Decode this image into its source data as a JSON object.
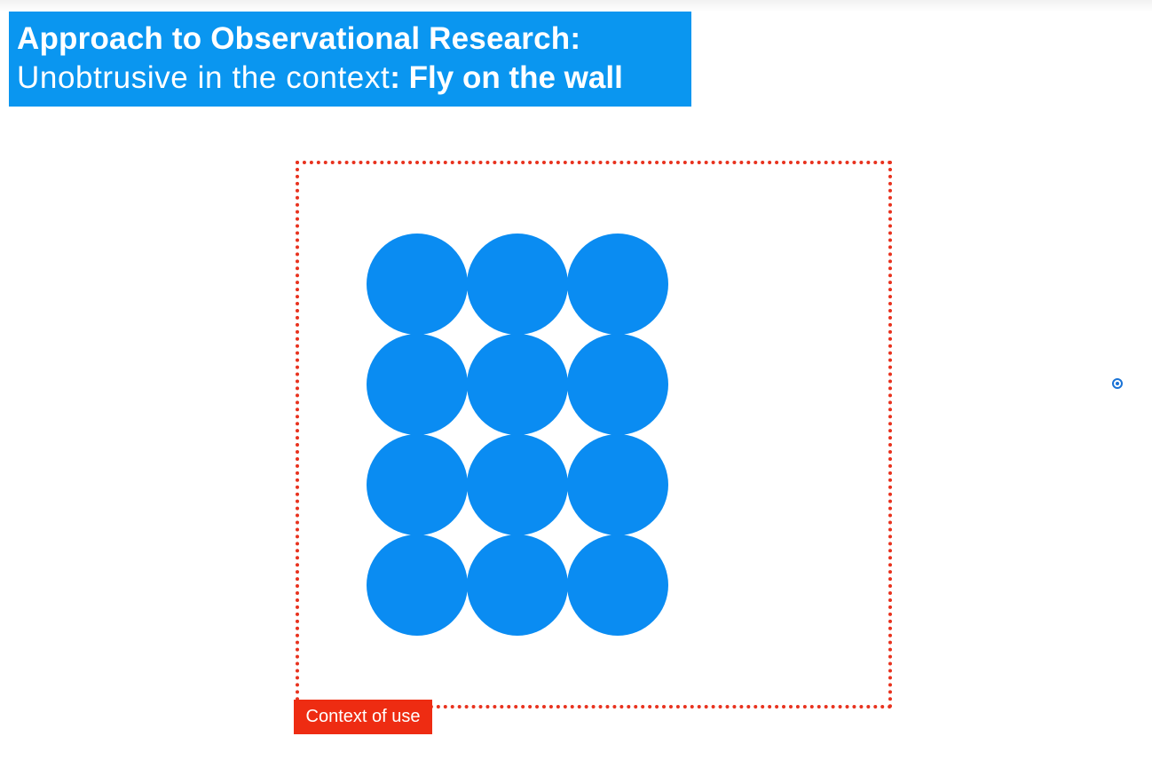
{
  "slide": {
    "title": {
      "line1": "Approach to Observational Research:",
      "line2_light": "Unobtrusive in the context",
      "line2_bold": ": Fly on the wall"
    },
    "context_label": "Context of use",
    "group": {
      "rows": 4,
      "columns": 3,
      "count": 12,
      "icon": "circle"
    },
    "colors": {
      "title_background": "#0a96f0",
      "circle_fill": "#0a8cf2",
      "frame_border": "#e8321e",
      "label_background": "#ee2c12",
      "pointer": "#1a73d6"
    }
  }
}
